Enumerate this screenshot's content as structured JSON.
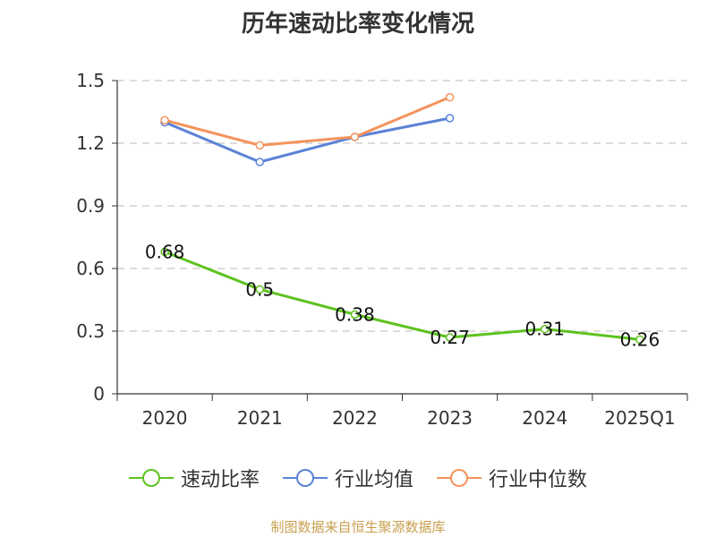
{
  "chart_data": {
    "type": "line",
    "title": "历年速动比率变化情况",
    "categories": [
      "2020",
      "2021",
      "2022",
      "2023",
      "2024",
      "2025Q1"
    ],
    "ylim": [
      0,
      1.5
    ],
    "yticks": [
      "0",
      "0.3",
      "0.6",
      "0.9",
      "1.2",
      "1.5"
    ],
    "grid": true,
    "legend_position": "bottom",
    "series": [
      {
        "name": "速动比率",
        "color": "#5ec21f",
        "values": [
          0.68,
          0.5,
          0.38,
          0.27,
          0.31,
          0.26
        ],
        "labels": [
          "0.68",
          "0.5",
          "0.38",
          "0.27",
          "0.31",
          "0.26"
        ],
        "marker": "circle-hollow"
      },
      {
        "name": "行业均值",
        "color": "#5b83d6",
        "values": [
          1.3,
          1.11,
          1.23,
          1.32,
          null,
          null
        ],
        "marker": "circle-hollow"
      },
      {
        "name": "行业中位数",
        "color": "#f4935c",
        "values": [
          1.31,
          1.19,
          1.23,
          1.42,
          null,
          null
        ],
        "marker": "circle-hollow"
      }
    ]
  },
  "source_note": "制图数据来自恒生聚源数据库"
}
